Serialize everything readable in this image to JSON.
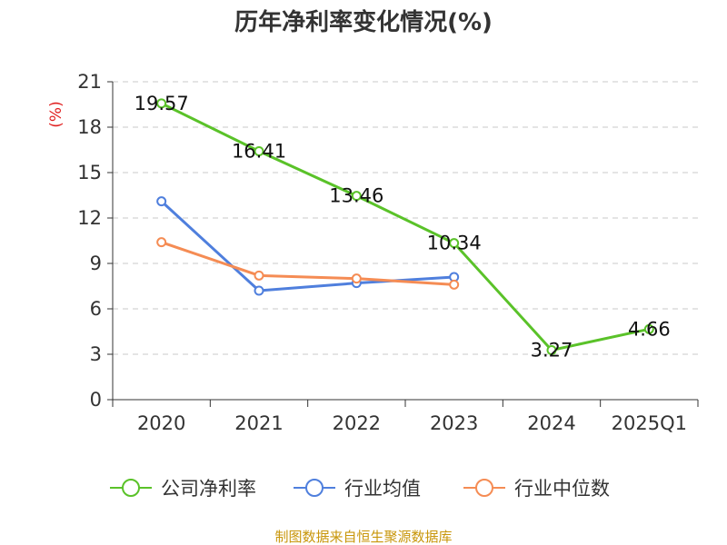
{
  "chart_data": {
    "type": "line",
    "title": "历年净利率变化情况(%)",
    "unit_label": "(%)",
    "categories": [
      "2020",
      "2021",
      "2022",
      "2023",
      "2024",
      "2025Q1"
    ],
    "ylim": [
      0,
      21
    ],
    "yticks": [
      "0",
      "3",
      "6",
      "9",
      "12",
      "15",
      "18",
      "21"
    ],
    "grid": true,
    "legend_position": "bottom",
    "series": [
      {
        "name": "公司净利率",
        "color": "#5ac229",
        "show_labels": true,
        "values": [
          19.57,
          16.41,
          13.46,
          10.34,
          3.27,
          4.66
        ],
        "labels": [
          "19.57",
          "16.41",
          "13.46",
          "10.34",
          "3.27",
          "4.66"
        ]
      },
      {
        "name": "行业均值",
        "color": "#4f7fdd",
        "show_labels": false,
        "values": [
          13.1,
          7.2,
          7.7,
          8.1,
          null,
          null
        ]
      },
      {
        "name": "行业中位数",
        "color": "#f58c54",
        "show_labels": false,
        "values": [
          10.4,
          8.2,
          8.0,
          7.6,
          null,
          null
        ]
      }
    ],
    "source": "制图数据来自恒生聚源数据库"
  }
}
